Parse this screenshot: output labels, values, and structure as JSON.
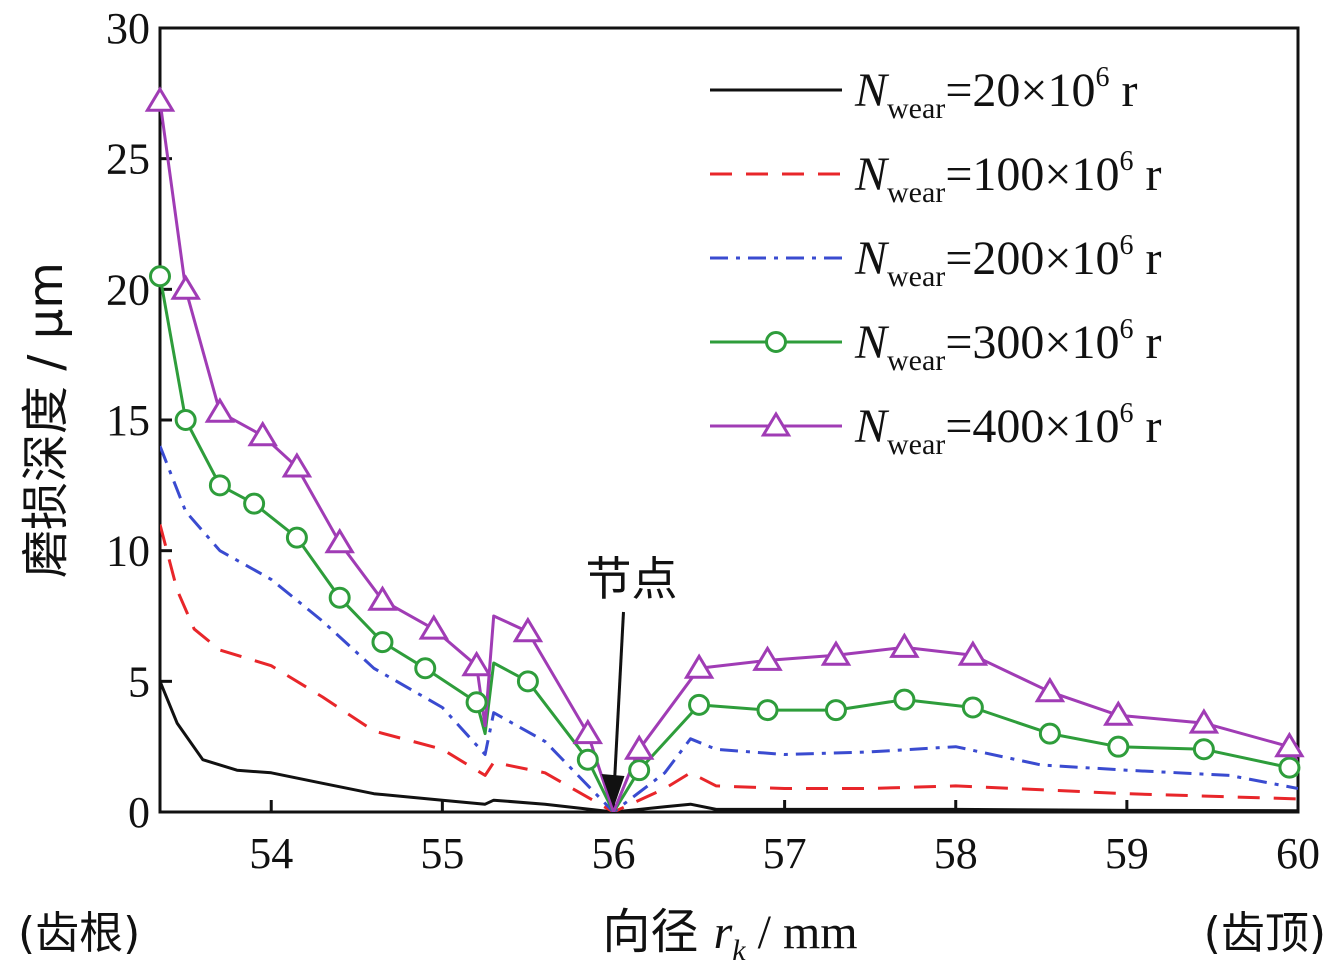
{
  "chart_data": {
    "type": "line",
    "title": "",
    "xlabel": "向径 r_k / mm",
    "xlabel_prefix": "向径 ",
    "xlabel_var": "r",
    "xlabel_sub": "k",
    "xlabel_unit": " / mm",
    "ylabel": "磨损深度 / μm",
    "x_left_label": "(齿根)",
    "x_right_label": "(齿顶)",
    "xlim": [
      53.35,
      60.0
    ],
    "ylim": [
      0,
      30
    ],
    "xticks": [
      54,
      55,
      56,
      57,
      58,
      59,
      60
    ],
    "yticks": [
      0,
      5,
      10,
      15,
      20,
      25,
      30
    ],
    "grid": false,
    "legend_position": "top-right",
    "annotations": [
      {
        "text": "节点",
        "x": 56.0,
        "y": 0
      }
    ],
    "series": [
      {
        "name": "N_wear=20×10^6 r",
        "legend": {
          "sym": "N",
          "sub": "wear",
          "mid": "=20×10",
          "sup": "6",
          "tail": " r"
        },
        "color": "#111111",
        "dash": "",
        "marker": "none",
        "points": [
          [
            53.35,
            5.0
          ],
          [
            53.45,
            3.4
          ],
          [
            53.6,
            2.0
          ],
          [
            53.8,
            1.6
          ],
          [
            54.0,
            1.5
          ],
          [
            54.3,
            1.1
          ],
          [
            54.6,
            0.7
          ],
          [
            55.0,
            0.45
          ],
          [
            55.25,
            0.3
          ],
          [
            55.3,
            0.45
          ],
          [
            55.6,
            0.3
          ],
          [
            56.0,
            0.0
          ],
          [
            56.3,
            0.2
          ],
          [
            56.45,
            0.3
          ],
          [
            56.6,
            0.1
          ],
          [
            57.0,
            0.1
          ],
          [
            58.0,
            0.1
          ],
          [
            59.0,
            0.06
          ],
          [
            60.0,
            0.05
          ]
        ],
        "markers": []
      },
      {
        "name": "N_wear=100×10^6 r",
        "legend": {
          "sym": "N",
          "sub": "wear",
          "mid": "=100×10",
          "sup": "6",
          "tail": " r"
        },
        "color": "#e8262a",
        "dash": "22,14",
        "marker": "none",
        "points": [
          [
            53.35,
            11.0
          ],
          [
            53.45,
            8.5
          ],
          [
            53.55,
            7.0
          ],
          [
            53.7,
            6.2
          ],
          [
            54.0,
            5.6
          ],
          [
            54.3,
            4.4
          ],
          [
            54.6,
            3.1
          ],
          [
            55.0,
            2.4
          ],
          [
            55.25,
            1.4
          ],
          [
            55.3,
            1.9
          ],
          [
            55.6,
            1.5
          ],
          [
            56.0,
            0.0
          ],
          [
            56.3,
            0.9
          ],
          [
            56.45,
            1.5
          ],
          [
            56.6,
            1.0
          ],
          [
            57.0,
            0.9
          ],
          [
            57.5,
            0.9
          ],
          [
            58.0,
            1.0
          ],
          [
            58.5,
            0.85
          ],
          [
            59.0,
            0.7
          ],
          [
            60.0,
            0.5
          ]
        ],
        "markers": []
      },
      {
        "name": "N_wear=200×10^6 r",
        "legend": {
          "sym": "N",
          "sub": "wear",
          "mid": "=200×10",
          "sup": "6",
          "tail": " r"
        },
        "color": "#3a4bd0",
        "dash": "18,8,4,8",
        "marker": "none",
        "points": [
          [
            53.35,
            14.0
          ],
          [
            53.5,
            11.5
          ],
          [
            53.7,
            10.0
          ],
          [
            54.0,
            8.9
          ],
          [
            54.3,
            7.3
          ],
          [
            54.6,
            5.5
          ],
          [
            55.0,
            4.0
          ],
          [
            55.25,
            2.2
          ],
          [
            55.3,
            3.8
          ],
          [
            55.6,
            2.7
          ],
          [
            56.0,
            0.0
          ],
          [
            56.3,
            1.5
          ],
          [
            56.45,
            2.8
          ],
          [
            56.6,
            2.4
          ],
          [
            57.0,
            2.2
          ],
          [
            57.5,
            2.3
          ],
          [
            58.0,
            2.5
          ],
          [
            58.5,
            1.8
          ],
          [
            59.0,
            1.6
          ],
          [
            59.6,
            1.4
          ],
          [
            60.0,
            0.9
          ]
        ],
        "markers": []
      },
      {
        "name": "N_wear=300×10^6 r",
        "legend": {
          "sym": "N",
          "sub": "wear",
          "mid": "=300×10",
          "sup": "6",
          "tail": " r"
        },
        "color": "#2e9d3b",
        "dash": "",
        "marker": "circle",
        "points": [
          [
            53.35,
            20.5
          ],
          [
            53.5,
            15.0
          ],
          [
            53.7,
            12.5
          ],
          [
            53.9,
            11.8
          ],
          [
            54.15,
            10.5
          ],
          [
            54.4,
            8.2
          ],
          [
            54.65,
            6.5
          ],
          [
            54.9,
            5.5
          ],
          [
            55.2,
            4.2
          ],
          [
            55.25,
            3.0
          ],
          [
            55.3,
            5.7
          ],
          [
            55.5,
            5.0
          ],
          [
            55.85,
            2.0
          ],
          [
            56.0,
            0.0
          ],
          [
            56.15,
            1.6
          ],
          [
            56.5,
            4.1
          ],
          [
            56.9,
            3.9
          ],
          [
            57.3,
            3.9
          ],
          [
            57.7,
            4.3
          ],
          [
            58.1,
            4.0
          ],
          [
            58.55,
            3.0
          ],
          [
            58.95,
            2.5
          ],
          [
            59.45,
            2.4
          ],
          [
            59.95,
            1.7
          ],
          [
            60.0,
            1.4
          ]
        ],
        "markers": [
          [
            53.35,
            20.5
          ],
          [
            53.5,
            15.0
          ],
          [
            53.7,
            12.5
          ],
          [
            53.9,
            11.8
          ],
          [
            54.15,
            10.5
          ],
          [
            54.4,
            8.2
          ],
          [
            54.65,
            6.5
          ],
          [
            54.9,
            5.5
          ],
          [
            55.2,
            4.2
          ],
          [
            55.5,
            5.0
          ],
          [
            55.85,
            2.0
          ],
          [
            56.15,
            1.6
          ],
          [
            56.5,
            4.1
          ],
          [
            56.9,
            3.9
          ],
          [
            57.3,
            3.9
          ],
          [
            57.7,
            4.3
          ],
          [
            58.1,
            4.0
          ],
          [
            58.55,
            3.0
          ],
          [
            58.95,
            2.5
          ],
          [
            59.45,
            2.4
          ],
          [
            59.95,
            1.7
          ]
        ]
      },
      {
        "name": "N_wear=400×10^6 r",
        "legend": {
          "sym": "N",
          "sub": "wear",
          "mid": "=400×10",
          "sup": "6",
          "tail": " r"
        },
        "color": "#a03cb5",
        "dash": "",
        "marker": "triangle",
        "points": [
          [
            53.35,
            27.2
          ],
          [
            53.5,
            20.0
          ],
          [
            53.7,
            15.3
          ],
          [
            53.95,
            14.4
          ],
          [
            54.15,
            13.2
          ],
          [
            54.4,
            10.3
          ],
          [
            54.65,
            8.1
          ],
          [
            54.95,
            7.0
          ],
          [
            55.2,
            5.6
          ],
          [
            55.25,
            3.3
          ],
          [
            55.3,
            7.5
          ],
          [
            55.5,
            6.9
          ],
          [
            55.85,
            3.0
          ],
          [
            56.0,
            0.0
          ],
          [
            56.15,
            2.4
          ],
          [
            56.5,
            5.5
          ],
          [
            56.9,
            5.8
          ],
          [
            57.3,
            6.0
          ],
          [
            57.7,
            6.3
          ],
          [
            58.1,
            6.0
          ],
          [
            58.55,
            4.6
          ],
          [
            58.95,
            3.7
          ],
          [
            59.45,
            3.4
          ],
          [
            59.95,
            2.5
          ],
          [
            60.0,
            1.9
          ]
        ],
        "markers": [
          [
            53.35,
            27.2
          ],
          [
            53.5,
            20.0
          ],
          [
            53.7,
            15.3
          ],
          [
            53.95,
            14.4
          ],
          [
            54.15,
            13.2
          ],
          [
            54.4,
            10.3
          ],
          [
            54.65,
            8.1
          ],
          [
            54.95,
            7.0
          ],
          [
            55.2,
            5.6
          ],
          [
            55.5,
            6.9
          ],
          [
            55.85,
            3.0
          ],
          [
            56.15,
            2.4
          ],
          [
            56.5,
            5.5
          ],
          [
            56.9,
            5.8
          ],
          [
            57.3,
            6.0
          ],
          [
            57.7,
            6.3
          ],
          [
            58.1,
            6.0
          ],
          [
            58.55,
            4.6
          ],
          [
            58.95,
            3.7
          ],
          [
            59.45,
            3.4
          ],
          [
            59.95,
            2.5
          ]
        ]
      }
    ]
  }
}
